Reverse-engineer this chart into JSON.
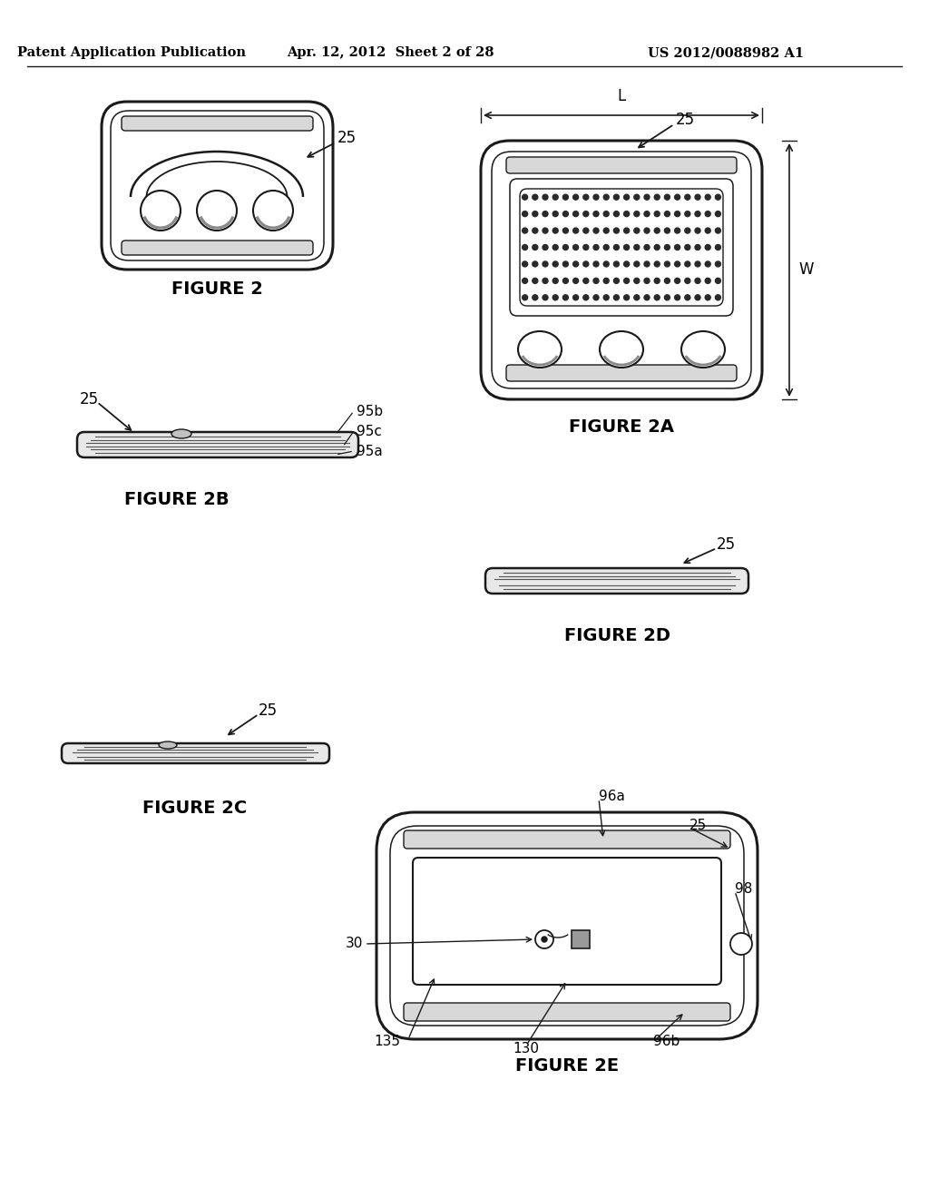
{
  "bg_color": "#ffffff",
  "header_left": "Patent Application Publication",
  "header_mid": "Apr. 12, 2012  Sheet 2 of 28",
  "header_right": "US 2012/0088982 A1",
  "fig2_label": "FIGURE 2",
  "fig2a_label": "FIGURE 2A",
  "fig2b_label": "FIGURE 2B",
  "fig2c_label": "FIGURE 2C",
  "fig2d_label": "FIGURE 2D",
  "fig2e_label": "FIGURE 2E",
  "line_color": "#1a1a1a",
  "label_color": "#000000",
  "gray_fill": "#d8d8d8",
  "white_fill": "#ffffff"
}
